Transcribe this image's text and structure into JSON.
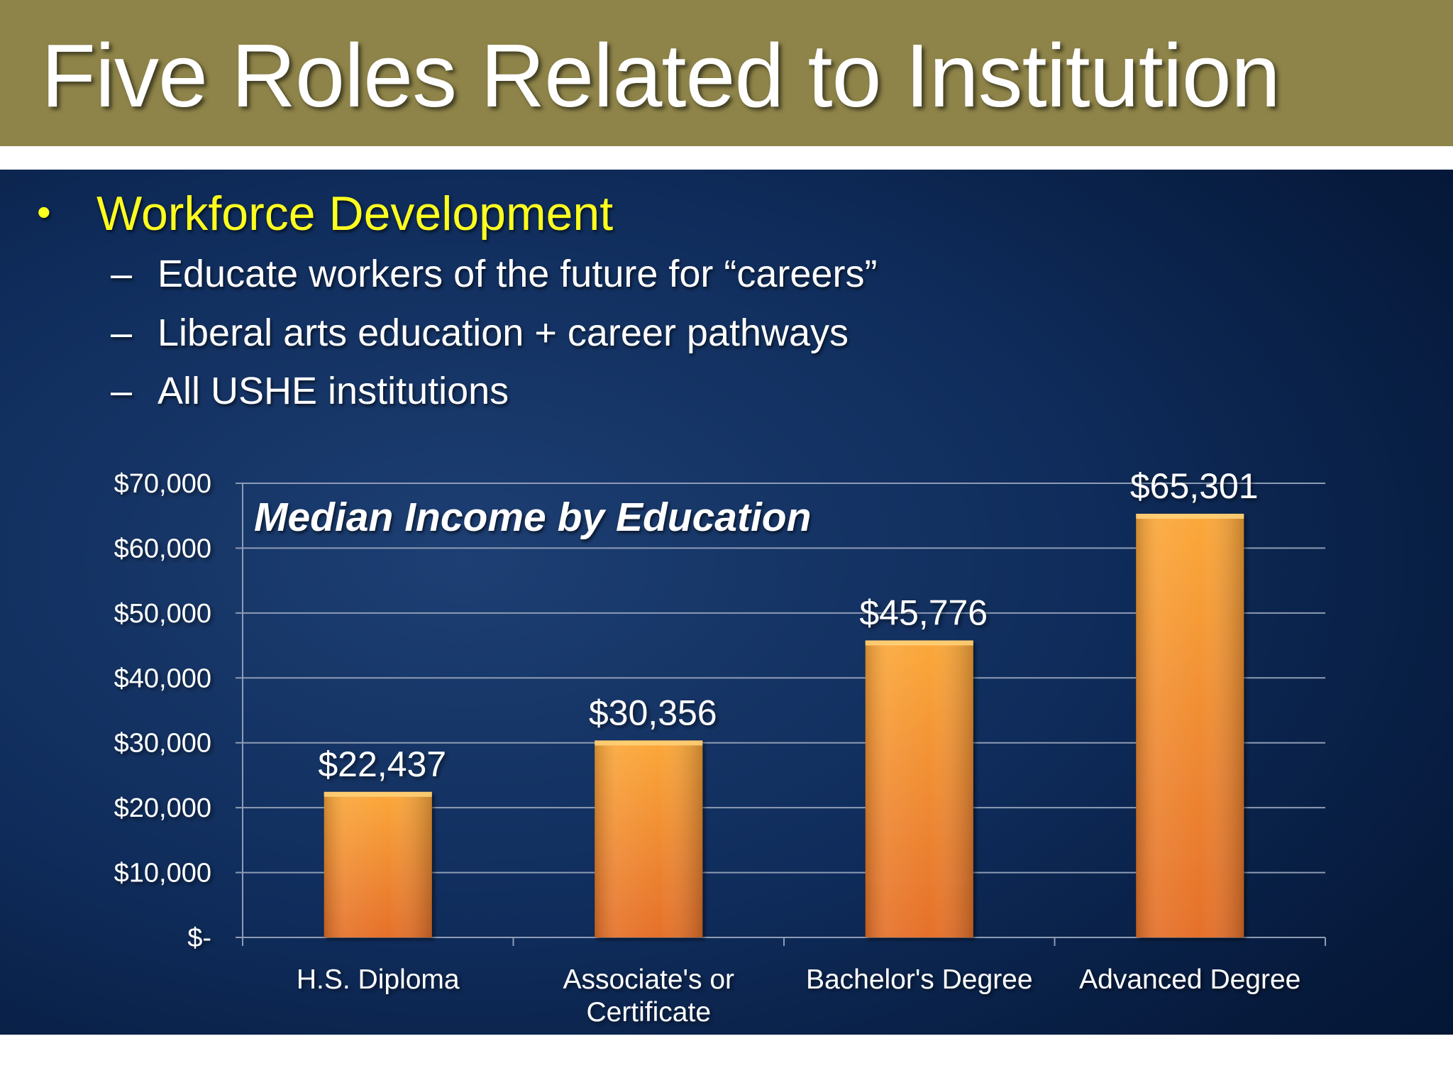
{
  "slide": {
    "title": "Five Roles Related to Institution",
    "bullet": "Workforce Development",
    "bullet_glyph": "•",
    "sub_glyph": "–",
    "sub_items": [
      "Educate workers of the future for “careers”",
      "Liberal arts education + career pathways",
      "All USHE institutions"
    ]
  },
  "colors": {
    "title_bar": "#8e8449",
    "bullet_text": "#ffff1f",
    "bar_top": "#fba83a",
    "bar_bottom": "#e5702a",
    "gridline": "#8e9cb4",
    "text": "#ffffff"
  },
  "chart_data": {
    "type": "bar",
    "title": "Median Income by Education",
    "categories": [
      [
        "H.S. Diploma"
      ],
      [
        "Associate's or",
        "Certificate"
      ],
      [
        "Bachelor's Degree"
      ],
      [
        "Advanced Degree"
      ]
    ],
    "values": [
      22437,
      30356,
      45776,
      65301
    ],
    "value_labels": [
      "$22,437",
      "$30,356",
      "$45,776",
      "$65,301"
    ],
    "ylim": [
      0,
      70000
    ],
    "yticks": [
      0,
      10000,
      20000,
      30000,
      40000,
      50000,
      60000,
      70000
    ],
    "ytick_labels": [
      "$-",
      "$10,000",
      "$20,000",
      "$30,000",
      "$40,000",
      "$50,000",
      "$60,000",
      "$70,000"
    ],
    "grid": true,
    "legend": "none"
  }
}
